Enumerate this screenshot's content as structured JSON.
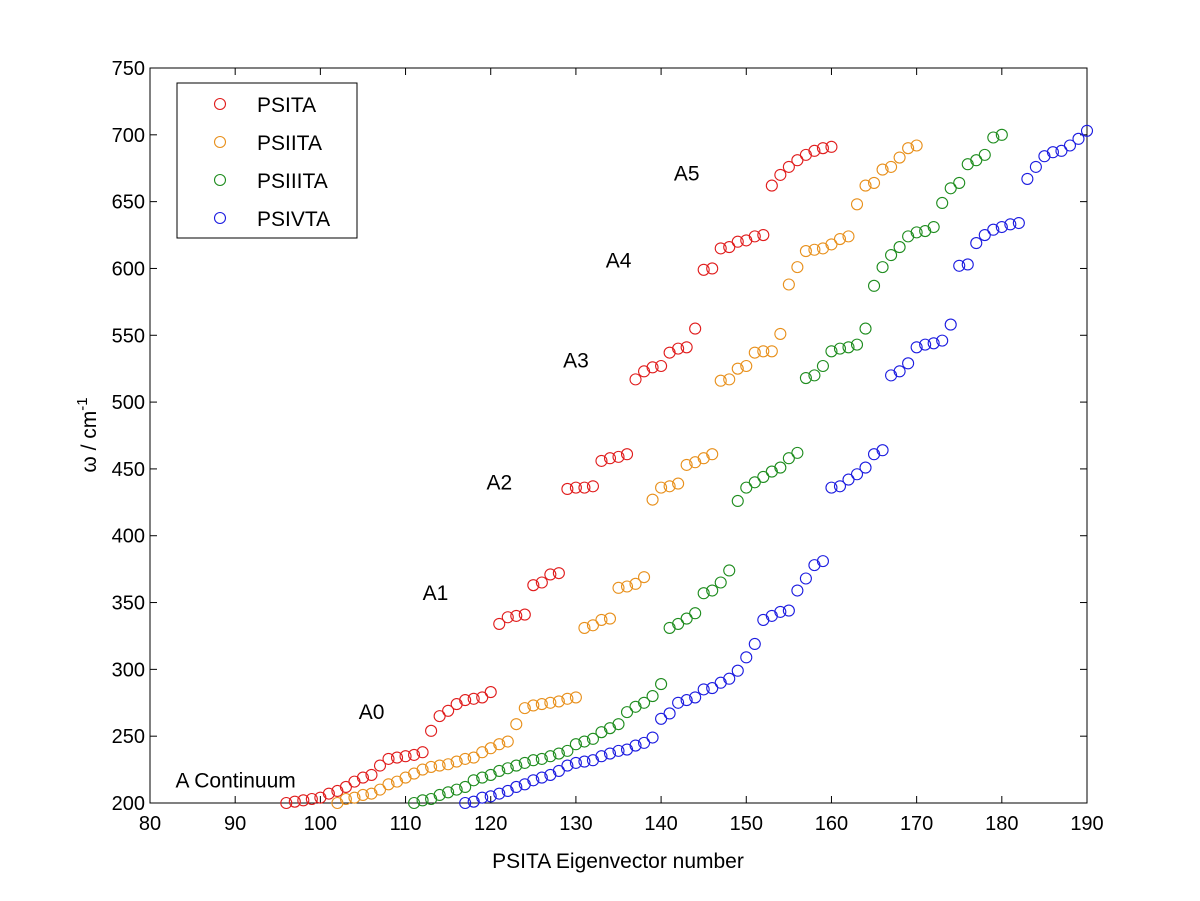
{
  "chart_data": {
    "type": "scatter",
    "title": "",
    "xlabel": "PSITA Eigenvector number",
    "ylabel_main": "ω / cm",
    "ylabel_sup": "-1",
    "xlim": [
      80,
      190
    ],
    "ylim": [
      200,
      750
    ],
    "xticks": [
      80,
      90,
      100,
      110,
      120,
      130,
      140,
      150,
      160,
      170,
      180,
      190
    ],
    "yticks": [
      200,
      250,
      300,
      350,
      400,
      450,
      500,
      550,
      600,
      650,
      700,
      750
    ],
    "grid": false,
    "legend_position": "top-left",
    "annotations": [
      {
        "text": "A Continuum",
        "x": 83,
        "y": 217
      },
      {
        "text": "A0",
        "x": 104.5,
        "y": 268
      },
      {
        "text": "A1",
        "x": 112,
        "y": 357
      },
      {
        "text": "A2",
        "x": 119.5,
        "y": 440
      },
      {
        "text": "A3",
        "x": 128.5,
        "y": 531
      },
      {
        "text": "A4",
        "x": 133.5,
        "y": 606
      },
      {
        "text": "A5",
        "x": 141.5,
        "y": 671
      }
    ],
    "series": [
      {
        "name": "PSITA",
        "color": "#e01c1c",
        "x": [
          96,
          97,
          98,
          99,
          100,
          101,
          102,
          103,
          104,
          105,
          106,
          107,
          108,
          109,
          110,
          111,
          112,
          113,
          114,
          115,
          116,
          117,
          118,
          119,
          120,
          121,
          122,
          123,
          124,
          125,
          126,
          127,
          128,
          129,
          130,
          131,
          132,
          133,
          134,
          135,
          136,
          137,
          138,
          139,
          140,
          141,
          142,
          143,
          144,
          145,
          146,
          147,
          148,
          149,
          150,
          151,
          152,
          153,
          154,
          155,
          156,
          157,
          158,
          159,
          160
        ],
        "y": [
          200,
          201,
          202,
          203,
          204,
          207,
          209,
          212,
          216,
          219,
          221,
          228,
          233,
          234,
          235,
          236,
          238,
          254,
          265,
          269,
          274,
          277,
          278,
          279,
          283,
          334,
          339,
          340,
          341,
          363,
          365,
          371,
          372,
          435,
          436,
          436,
          437,
          456,
          458,
          459,
          461,
          517,
          523,
          526,
          527,
          537,
          540,
          541,
          555,
          599,
          600,
          615,
          616,
          620,
          621,
          624,
          625,
          662,
          670,
          676,
          681,
          685,
          688,
          690,
          691
        ]
      },
      {
        "name": "PSIITA",
        "color": "#e8901c",
        "x": [
          102,
          103,
          104,
          105,
          106,
          107,
          108,
          109,
          110,
          111,
          112,
          113,
          114,
          115,
          116,
          117,
          118,
          119,
          120,
          121,
          122,
          123,
          124,
          125,
          126,
          127,
          128,
          129,
          130,
          131,
          132,
          133,
          134,
          135,
          136,
          137,
          138,
          139,
          140,
          141,
          142,
          143,
          144,
          145,
          146,
          147,
          148,
          149,
          150,
          151,
          152,
          153,
          154,
          155,
          156,
          157,
          158,
          159,
          160,
          161,
          162,
          163,
          164,
          165,
          166,
          167,
          168,
          169,
          170
        ],
        "y": [
          200,
          203,
          204,
          206,
          207,
          210,
          214,
          216,
          219,
          222,
          225,
          227,
          228,
          229,
          231,
          233,
          234,
          238,
          241,
          244,
          246,
          259,
          271,
          273,
          274,
          275,
          276,
          278,
          279,
          331,
          333,
          337,
          338,
          361,
          362,
          364,
          369,
          427,
          436,
          437,
          439,
          453,
          455,
          458,
          461,
          516,
          517,
          525,
          527,
          537,
          538,
          538,
          551,
          588,
          601,
          613,
          614,
          615,
          618,
          622,
          624,
          648,
          662,
          664,
          674,
          676,
          683,
          690,
          692
        ]
      },
      {
        "name": "PSIIITA",
        "color": "#1e8c1e",
        "x": [
          111,
          112,
          113,
          114,
          115,
          116,
          117,
          118,
          119,
          120,
          121,
          122,
          123,
          124,
          125,
          126,
          127,
          128,
          129,
          130,
          131,
          132,
          133,
          134,
          135,
          136,
          137,
          138,
          139,
          140,
          141,
          142,
          143,
          144,
          145,
          146,
          147,
          148,
          149,
          150,
          151,
          152,
          153,
          154,
          155,
          156,
          157,
          158,
          159,
          160,
          161,
          162,
          163,
          164,
          165,
          166,
          167,
          168,
          169,
          170,
          171,
          172,
          173,
          174,
          175,
          176,
          177,
          178,
          179,
          180
        ],
        "y": [
          200,
          202,
          203,
          206,
          208,
          210,
          212,
          217,
          219,
          221,
          224,
          226,
          228,
          230,
          232,
          233,
          235,
          237,
          239,
          244,
          246,
          248,
          253,
          256,
          259,
          268,
          272,
          275,
          280,
          289,
          331,
          334,
          338,
          342,
          357,
          359,
          365,
          374,
          426,
          436,
          440,
          444,
          448,
          451,
          458,
          462,
          518,
          520,
          527,
          538,
          540,
          541,
          543,
          555,
          587,
          601,
          610,
          616,
          624,
          627,
          628,
          631,
          649,
          660,
          664,
          678,
          681,
          685,
          698,
          700
        ]
      },
      {
        "name": "PSIVTA",
        "color": "#1c1ce0",
        "x": [
          117,
          118,
          119,
          120,
          121,
          122,
          123,
          124,
          125,
          126,
          127,
          128,
          129,
          130,
          131,
          132,
          133,
          134,
          135,
          136,
          137,
          138,
          139,
          140,
          141,
          142,
          143,
          144,
          145,
          146,
          147,
          148,
          149,
          150,
          151,
          152,
          153,
          154,
          155,
          156,
          157,
          158,
          159,
          160,
          161,
          162,
          163,
          164,
          165,
          166,
          167,
          168,
          169,
          170,
          171,
          172,
          173,
          174,
          175,
          176,
          177,
          178,
          179,
          180,
          181,
          182,
          183,
          184,
          185,
          186,
          187,
          188,
          189,
          190
        ],
        "y": [
          200,
          201,
          204,
          205,
          207,
          209,
          212,
          214,
          217,
          219,
          221,
          224,
          228,
          230,
          231,
          232,
          235,
          237,
          239,
          240,
          243,
          245,
          249,
          263,
          267,
          275,
          277,
          279,
          285,
          286,
          290,
          293,
          299,
          309,
          319,
          337,
          340,
          343,
          344,
          359,
          368,
          378,
          381,
          436,
          437,
          442,
          446,
          451,
          461,
          464,
          520,
          523,
          529,
          541,
          543,
          544,
          546,
          558,
          602,
          603,
          619,
          625,
          629,
          631,
          633,
          634,
          667,
          676,
          684,
          687,
          688,
          692,
          697,
          703
        ]
      }
    ]
  }
}
